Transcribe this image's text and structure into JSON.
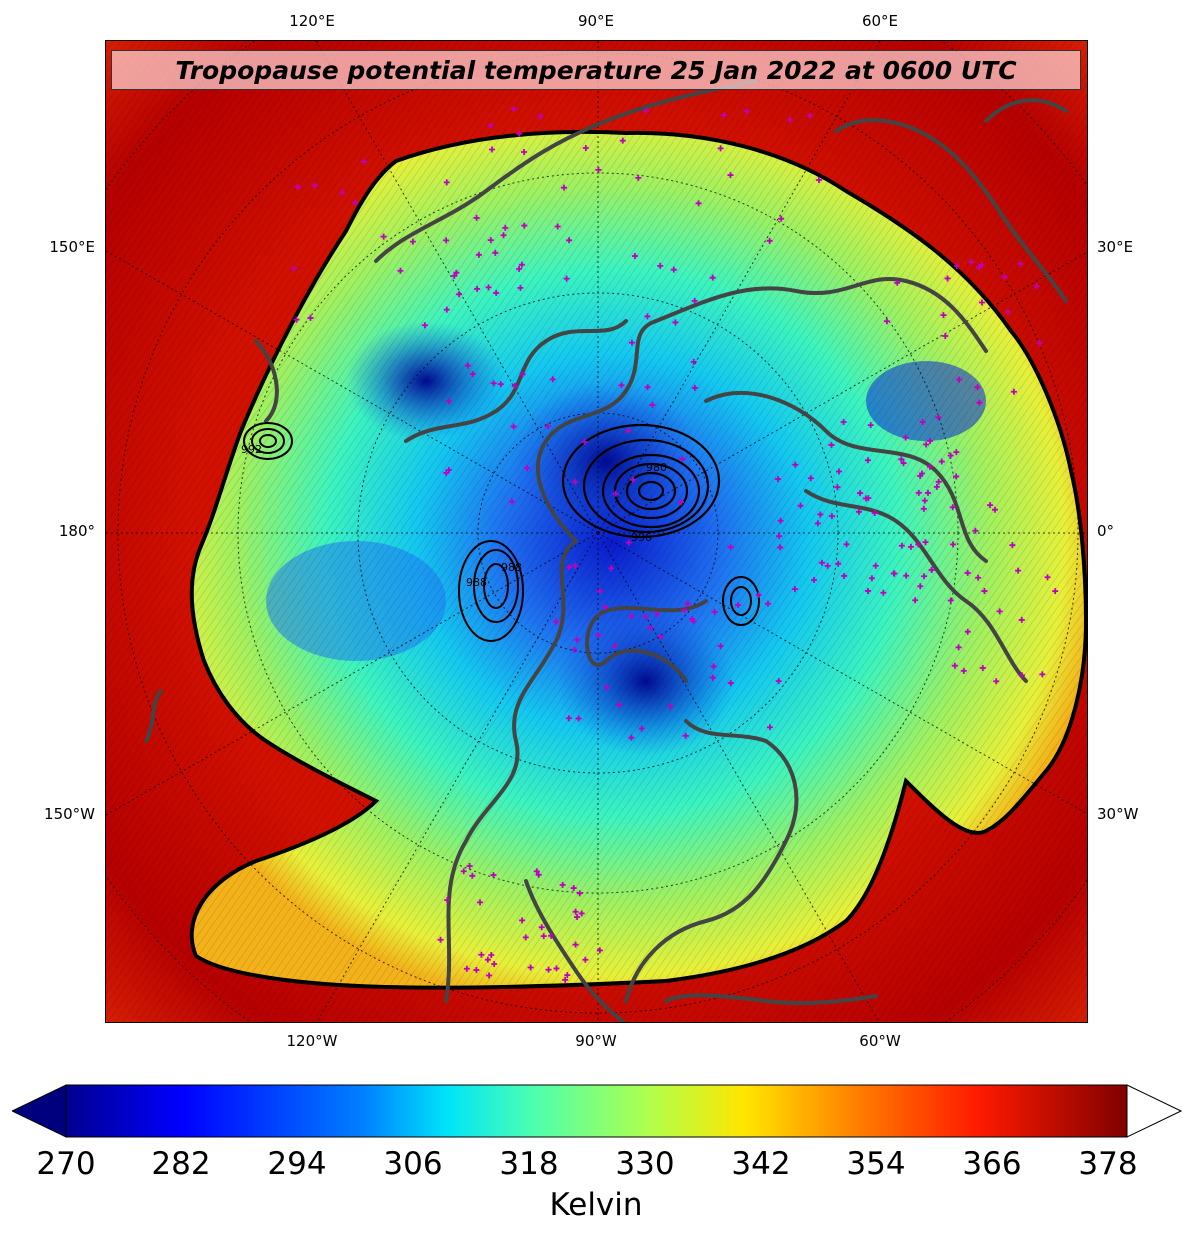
{
  "title": "Tropopause potential temperature 25 Jan 2022 at 0600 UTC",
  "axes": {
    "top_ticks": [
      "120°E",
      "90°E",
      "60°E"
    ],
    "bottom_ticks": [
      "120°W",
      "90°W",
      "60°W"
    ],
    "left_ticks": [
      "150°E",
      "180°",
      "150°W"
    ],
    "right_ticks": [
      "30°E",
      "0°",
      "30°W"
    ]
  },
  "colorbar": {
    "label": "Kelvin",
    "ticks": [
      "270",
      "282",
      "294",
      "306",
      "318",
      "330",
      "342",
      "354",
      "366",
      "378"
    ],
    "range": [
      270,
      378
    ],
    "extend_low_color": "#00007f",
    "extend_high_color": "#ffffff",
    "colormap": "jet",
    "stops": [
      "#00008f",
      "#0000ff",
      "#0080ff",
      "#00e4f8",
      "#4cffb0",
      "#b0ff4c",
      "#ffe600",
      "#ff7a00",
      "#ff1a00",
      "#800000"
    ]
  },
  "contour_labels": [
    "992",
    "996",
    "980",
    "988",
    "988"
  ],
  "colors": {
    "warm_background": "#c00000",
    "coastline": "#444444",
    "station_marker": "#c000c0"
  }
}
